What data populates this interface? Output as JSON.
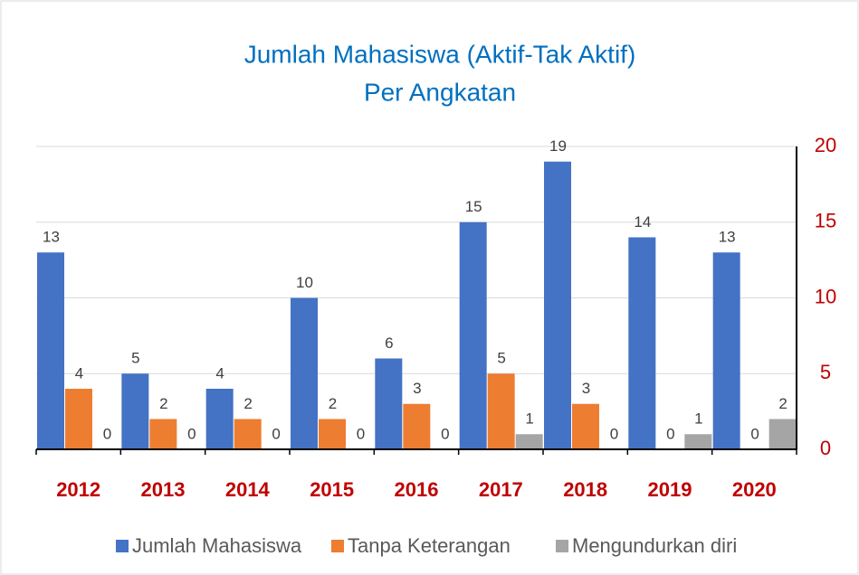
{
  "chart_data": {
    "type": "bar",
    "title": "Jumlah Mahasiswa (Aktif-Tak Aktif)",
    "subtitle": "Per Angkatan",
    "categories": [
      "2012",
      "2013",
      "2014",
      "2015",
      "2016",
      "2017",
      "2018",
      "2019",
      "2020"
    ],
    "series": [
      {
        "name": "Jumlah Mahasiswa",
        "color": "#4472c4",
        "values": [
          13,
          5,
          4,
          10,
          6,
          15,
          19,
          14,
          13
        ]
      },
      {
        "name": "Tanpa Keterangan",
        "color": "#ed7d31",
        "values": [
          4,
          2,
          2,
          2,
          3,
          5,
          3,
          0,
          0
        ]
      },
      {
        "name": "Mengundurkan diri",
        "color": "#a5a5a5",
        "values": [
          0,
          0,
          0,
          0,
          0,
          1,
          0,
          1,
          2
        ]
      }
    ],
    "ylim": [
      0,
      20
    ],
    "yticks": [
      0,
      5,
      10,
      15,
      20
    ],
    "grid": true,
    "legend": "bottom"
  }
}
